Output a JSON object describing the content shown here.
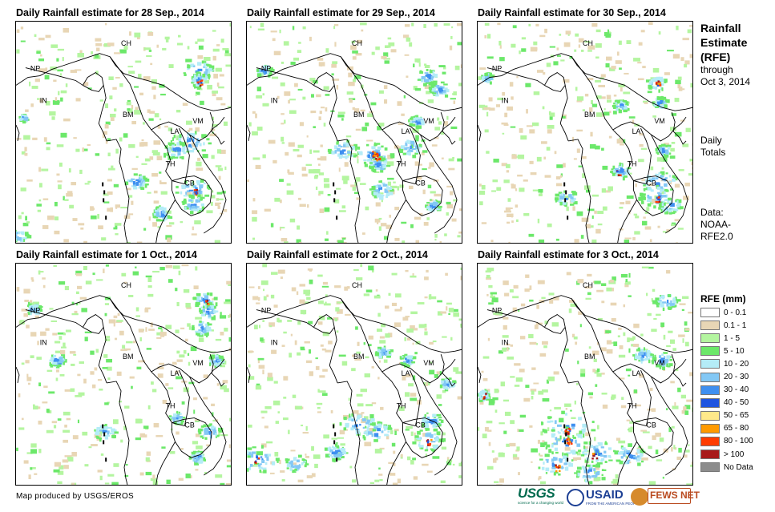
{
  "panels": [
    {
      "title": "Daily Rainfall estimate for 28 Sep., 2014"
    },
    {
      "title": "Daily Rainfall estimate for 29 Sep., 2014"
    },
    {
      "title": "Daily Rainfall estimate for 30 Sep., 2014"
    },
    {
      "title": "Daily Rainfall estimate for 1 Oct., 2014"
    },
    {
      "title": "Daily Rainfall estimate for 2 Oct., 2014"
    },
    {
      "title": "Daily Rainfall estimate for 3 Oct., 2014"
    }
  ],
  "country_labels": {
    "CH": "CH",
    "NP": "NP",
    "IN": "IN",
    "BM": "BM",
    "LA": "LA",
    "VM": "VM",
    "TH": "TH",
    "CB": "CB"
  },
  "side": {
    "title_line1": "Rainfall",
    "title_line2": "Estimate",
    "title_line3": "(RFE)",
    "through": "through",
    "through_date": "Oct 3, 2014",
    "totals_line1": "Daily",
    "totals_line2": "Totals",
    "data_line1": "Data:",
    "data_line2": "NOAA-",
    "data_line3": "RFE2.0"
  },
  "legend": {
    "title": "RFE (mm)",
    "items": [
      {
        "label": "0 - 0.1",
        "color": "#ffffff"
      },
      {
        "label": "0.1 - 1",
        "color": "#e8d6b5"
      },
      {
        "label": "1 - 5",
        "color": "#b4f5a0"
      },
      {
        "label": "5 - 10",
        "color": "#6ce86a"
      },
      {
        "label": "10 - 20",
        "color": "#b4ecf7"
      },
      {
        "label": "20 - 30",
        "color": "#83c8f5"
      },
      {
        "label": "30 - 40",
        "color": "#3e8ff0"
      },
      {
        "label": "40 - 50",
        "color": "#1f55e0"
      },
      {
        "label": "50 - 65",
        "color": "#ffe98a"
      },
      {
        "label": "65 - 80",
        "color": "#ff9a00"
      },
      {
        "label": "80 - 100",
        "color": "#ff3c00"
      },
      {
        "label": "> 100",
        "color": "#a81a1a"
      },
      {
        "label": "No Data",
        "color": "#8c8c8c"
      }
    ]
  },
  "credit": "Map produced by USGS/EROS",
  "logos": {
    "usgs": "USGS",
    "usgs_tagline": "science for a changing world",
    "usaid": "USAID",
    "usaid_tagline": "FROM THE AMERICAN PEOPLE",
    "fews": "FEWS NET"
  }
}
